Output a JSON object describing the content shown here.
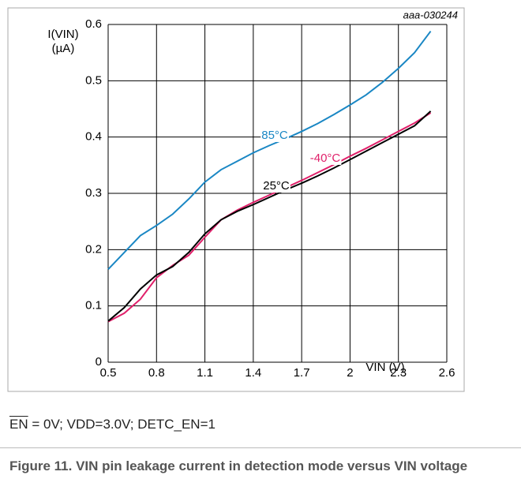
{
  "chart_data": {
    "type": "line",
    "code": "aaa-030244",
    "ylabel": [
      "I(VIN)",
      "(µA)"
    ],
    "xlabel": "VIN (V)",
    "x": [
      0.5,
      0.6,
      0.7,
      0.8,
      0.9,
      1.0,
      1.1,
      1.2,
      1.3,
      1.4,
      1.5,
      1.6,
      1.7,
      1.8,
      1.9,
      2.0,
      2.1,
      2.2,
      2.3,
      2.4,
      2.5
    ],
    "series": [
      {
        "name": "85°C",
        "color": "#1a87c4",
        "values": [
          0.165,
          0.195,
          0.225,
          0.243,
          0.263,
          0.29,
          0.32,
          0.342,
          0.357,
          0.372,
          0.385,
          0.397,
          0.41,
          0.424,
          0.44,
          0.457,
          0.475,
          0.497,
          0.522,
          0.55,
          0.588
        ]
      },
      {
        "name": "-40°C",
        "color": "#e0206a",
        "values": [
          0.072,
          0.087,
          0.112,
          0.15,
          0.172,
          0.19,
          0.222,
          0.253,
          0.27,
          0.284,
          0.297,
          0.31,
          0.323,
          0.337,
          0.351,
          0.366,
          0.38,
          0.395,
          0.41,
          0.425,
          0.443
        ]
      },
      {
        "name": "25°C",
        "color": "#000000",
        "values": [
          0.073,
          0.097,
          0.13,
          0.155,
          0.17,
          0.195,
          0.228,
          0.253,
          0.268,
          0.28,
          0.293,
          0.306,
          0.318,
          0.331,
          0.345,
          0.36,
          0.375,
          0.39,
          0.405,
          0.42,
          0.446
        ]
      }
    ],
    "xlim": [
      0.5,
      2.6
    ],
    "xticks": [
      0.5,
      0.8,
      1.1,
      1.4,
      1.7,
      2,
      2.3,
      2.6
    ],
    "ylim": [
      0,
      0.6
    ],
    "yticks": [
      0,
      0.1,
      0.2,
      0.3,
      0.4,
      0.5,
      0.6
    ],
    "grid": true
  },
  "caption": {
    "note": [
      "EN",
      "= 0V; VDD=3.0V; DETC_EN=1"
    ],
    "figure": "Figure 11.  VIN pin leakage current in detection mode versus VIN voltage"
  }
}
